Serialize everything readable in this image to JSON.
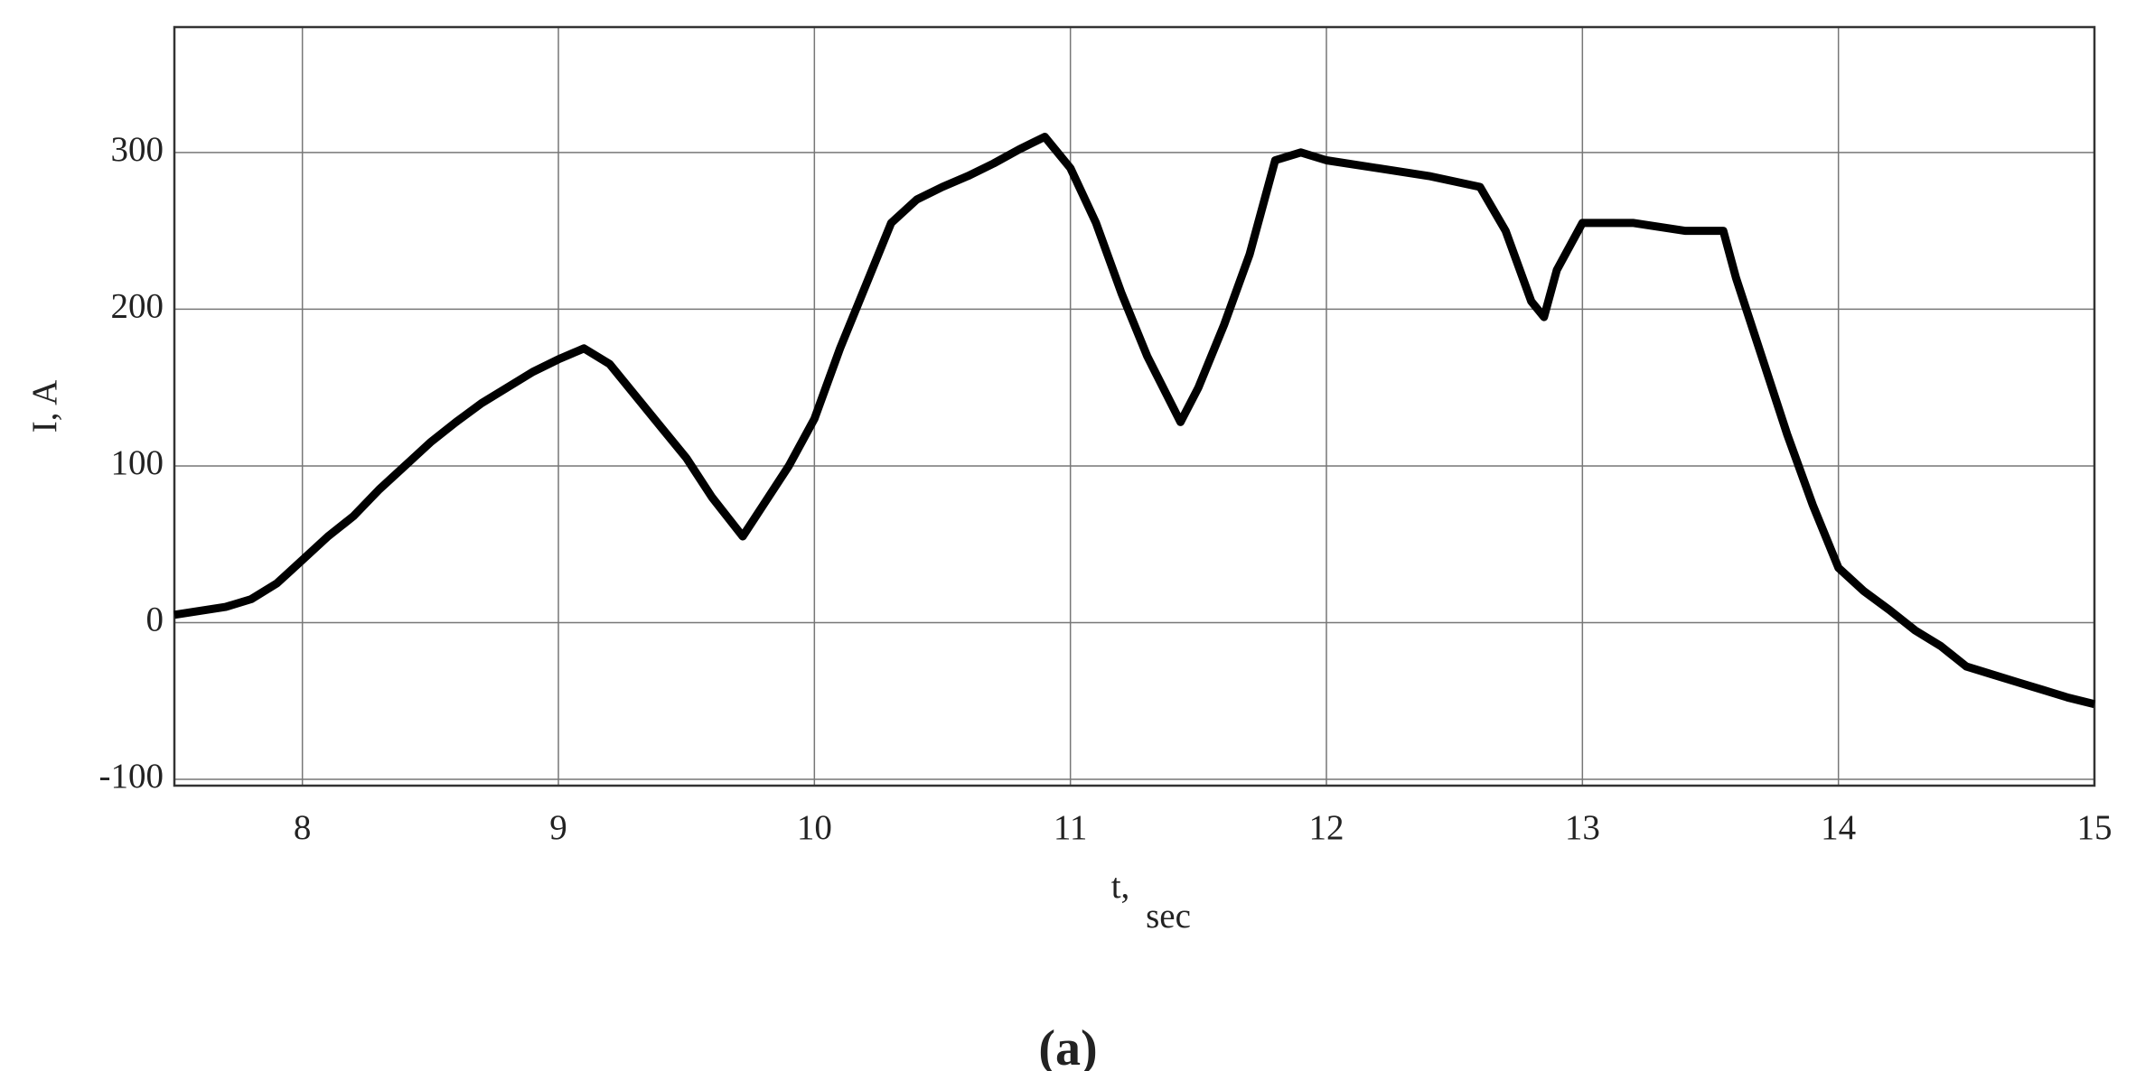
{
  "chart_data": {
    "type": "line",
    "y_label": "I, A",
    "x_label": "t,",
    "x_label_sub": "sec",
    "caption": "(a)",
    "xlim": [
      7.5,
      15
    ],
    "xticks": [
      8,
      9,
      10,
      11,
      12,
      13,
      14,
      15
    ],
    "ylim": [
      -104,
      380
    ],
    "yticks": [
      -100,
      0,
      100,
      200,
      300
    ],
    "grid": true,
    "series": [
      {
        "color": "#000000",
        "x": [
          7.5,
          7.7,
          7.8,
          7.9,
          8.0,
          8.1,
          8.2,
          8.3,
          8.4,
          8.5,
          8.6,
          8.7,
          8.8,
          8.9,
          9.0,
          9.1,
          9.2,
          9.3,
          9.4,
          9.5,
          9.6,
          9.72,
          9.8,
          9.9,
          10.0,
          10.1,
          10.2,
          10.3,
          10.4,
          10.5,
          10.6,
          10.7,
          10.8,
          10.9,
          11.0,
          11.1,
          11.2,
          11.3,
          11.43,
          11.5,
          11.6,
          11.7,
          11.8,
          11.9,
          12.0,
          12.2,
          12.4,
          12.6,
          12.7,
          12.8,
          12.85,
          12.9,
          13.0,
          13.2,
          13.4,
          13.55,
          13.6,
          13.7,
          13.8,
          13.9,
          14.0,
          14.1,
          14.2,
          14.3,
          14.4,
          14.5,
          14.6,
          14.7,
          14.8,
          14.9,
          15.0
        ],
        "values": [
          5,
          10,
          15,
          25,
          40,
          55,
          68,
          85,
          100,
          115,
          128,
          140,
          150,
          160,
          168,
          175,
          165,
          145,
          125,
          105,
          80,
          55,
          75,
          100,
          130,
          175,
          215,
          255,
          270,
          278,
          285,
          293,
          302,
          310,
          290,
          255,
          210,
          170,
          128,
          150,
          190,
          235,
          295,
          300,
          295,
          290,
          285,
          278,
          250,
          205,
          195,
          225,
          255,
          255,
          250,
          250,
          220,
          170,
          120,
          75,
          35,
          20,
          8,
          -5,
          -15,
          -28,
          -33,
          -38,
          -43,
          -48,
          -52
        ]
      }
    ]
  }
}
